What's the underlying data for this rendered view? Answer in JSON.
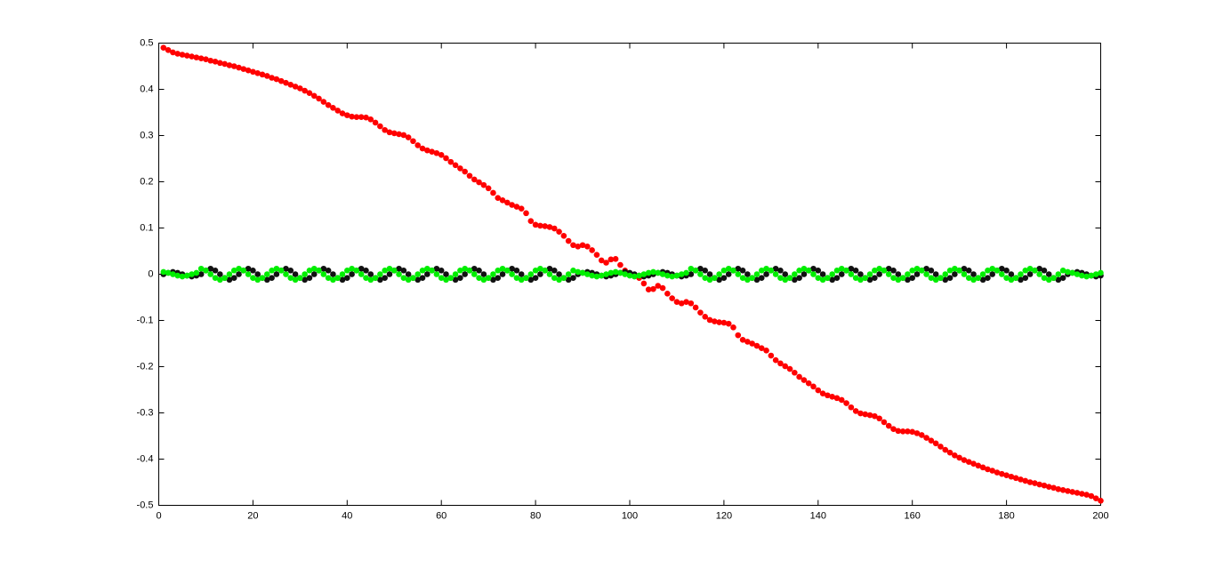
{
  "chart_data": {
    "type": "scatter",
    "x": [
      1,
      2,
      3,
      4,
      5,
      6,
      7,
      8,
      9,
      10,
      11,
      12,
      13,
      14,
      15,
      16,
      17,
      18,
      19,
      20,
      21,
      22,
      23,
      24,
      25,
      26,
      27,
      28,
      29,
      30,
      31,
      32,
      33,
      34,
      35,
      36,
      37,
      38,
      39,
      40,
      41,
      42,
      43,
      44,
      45,
      46,
      47,
      48,
      49,
      50,
      51,
      52,
      53,
      54,
      55,
      56,
      57,
      58,
      59,
      60,
      61,
      62,
      63,
      64,
      65,
      66,
      67,
      68,
      69,
      70,
      71,
      72,
      73,
      74,
      75,
      76,
      77,
      78,
      79,
      80,
      81,
      82,
      83,
      84,
      85,
      86,
      87,
      88,
      89,
      90,
      91,
      92,
      93,
      94,
      95,
      96,
      97,
      98,
      99,
      100,
      101,
      102,
      103,
      104,
      105,
      106,
      107,
      108,
      109,
      110,
      111,
      112,
      113,
      114,
      115,
      116,
      117,
      118,
      119,
      120,
      121,
      122,
      123,
      124,
      125,
      126,
      127,
      128,
      129,
      130,
      131,
      132,
      133,
      134,
      135,
      136,
      137,
      138,
      139,
      140,
      141,
      142,
      143,
      144,
      145,
      146,
      147,
      148,
      149,
      150,
      151,
      152,
      153,
      154,
      155,
      156,
      157,
      158,
      159,
      160,
      161,
      162,
      163,
      164,
      165,
      166,
      167,
      168,
      169,
      170,
      171,
      172,
      173,
      174,
      175,
      176,
      177,
      178,
      179,
      180,
      181,
      182,
      183,
      184,
      185,
      186,
      187,
      188,
      189,
      190,
      191,
      192,
      193,
      194,
      195,
      196,
      197,
      198,
      199,
      200
    ],
    "series": [
      {
        "color": "#ff0000",
        "values": [
          0.49,
          0.485,
          0.48,
          0.477,
          0.475,
          0.473,
          0.471,
          0.469,
          0.467,
          0.465,
          0.462,
          0.46,
          0.457,
          0.455,
          0.452,
          0.45,
          0.447,
          0.444,
          0.441,
          0.438,
          0.435,
          0.432,
          0.429,
          0.425,
          0.422,
          0.418,
          0.414,
          0.41,
          0.406,
          0.402,
          0.397,
          0.392,
          0.386,
          0.38,
          0.373,
          0.366,
          0.36,
          0.354,
          0.348,
          0.344,
          0.341,
          0.34,
          0.34,
          0.339,
          0.335,
          0.328,
          0.32,
          0.312,
          0.307,
          0.305,
          0.303,
          0.301,
          0.296,
          0.288,
          0.279,
          0.272,
          0.268,
          0.265,
          0.262,
          0.258,
          0.251,
          0.243,
          0.236,
          0.229,
          0.222,
          0.213,
          0.205,
          0.199,
          0.193,
          0.186,
          0.176,
          0.165,
          0.16,
          0.155,
          0.15,
          0.146,
          0.142,
          0.132,
          0.115,
          0.107,
          0.105,
          0.104,
          0.102,
          0.099,
          0.092,
          0.083,
          0.072,
          0.063,
          0.06,
          0.063,
          0.06,
          0.052,
          0.042,
          0.03,
          0.025,
          0.032,
          0.033,
          0.02,
          0.008,
          0.002,
          -0.002,
          -0.008,
          -0.02,
          -0.033,
          -0.032,
          -0.025,
          -0.03,
          -0.042,
          -0.052,
          -0.06,
          -0.063,
          -0.06,
          -0.063,
          -0.072,
          -0.083,
          -0.092,
          -0.099,
          -0.102,
          -0.104,
          -0.105,
          -0.107,
          -0.115,
          -0.132,
          -0.142,
          -0.146,
          -0.15,
          -0.155,
          -0.16,
          -0.165,
          -0.176,
          -0.186,
          -0.193,
          -0.199,
          -0.205,
          -0.213,
          -0.222,
          -0.229,
          -0.236,
          -0.243,
          -0.251,
          -0.258,
          -0.262,
          -0.265,
          -0.268,
          -0.272,
          -0.279,
          -0.288,
          -0.296,
          -0.301,
          -0.303,
          -0.305,
          -0.307,
          -0.312,
          -0.32,
          -0.328,
          -0.335,
          -0.339,
          -0.34,
          -0.34,
          -0.341,
          -0.344,
          -0.348,
          -0.354,
          -0.36,
          -0.366,
          -0.373,
          -0.38,
          -0.386,
          -0.392,
          -0.397,
          -0.402,
          -0.406,
          -0.41,
          -0.414,
          -0.418,
          -0.422,
          -0.425,
          -0.429,
          -0.432,
          -0.435,
          -0.438,
          -0.441,
          -0.444,
          -0.447,
          -0.45,
          -0.452,
          -0.455,
          -0.457,
          -0.46,
          -0.462,
          -0.465,
          -0.467,
          -0.469,
          -0.471,
          -0.473,
          -0.475,
          -0.477,
          -0.48,
          -0.485,
          -0.49
        ]
      },
      {
        "color": "#111111",
        "values": [
          0,
          0.003,
          0.005,
          0.003,
          0,
          -0.003,
          -0.005,
          -0.003,
          0,
          0.008,
          0.012,
          0.008,
          0,
          -0.008,
          -0.012,
          -0.008,
          0,
          0.008,
          0.012,
          0.008,
          0,
          -0.008,
          -0.012,
          -0.008,
          0,
          0.008,
          0.012,
          0.008,
          0,
          -0.008,
          -0.012,
          -0.008,
          0,
          0.008,
          0.012,
          0.008,
          0,
          -0.008,
          -0.012,
          -0.008,
          0,
          0.008,
          0.012,
          0.008,
          0,
          -0.008,
          -0.012,
          -0.008,
          0,
          0.008,
          0.012,
          0.008,
          0,
          -0.008,
          -0.012,
          -0.008,
          0,
          0.008,
          0.012,
          0.008,
          0,
          -0.008,
          -0.012,
          -0.008,
          0,
          0.008,
          0.012,
          0.008,
          0,
          -0.008,
          -0.012,
          -0.008,
          0,
          0.008,
          0.012,
          0.008,
          0,
          -0.008,
          -0.012,
          -0.008,
          0,
          0.008,
          0.012,
          0.008,
          0,
          -0.008,
          -0.012,
          -0.008,
          0,
          0.003,
          0.005,
          0.003,
          0,
          -0.003,
          -0.005,
          -0.003,
          0,
          0.003,
          0.005,
          0.003,
          0,
          -0.003,
          -0.005,
          -0.003,
          0,
          0.003,
          0.005,
          0.003,
          0,
          -0.003,
          -0.005,
          -0.003,
          0,
          0.008,
          0.012,
          0.008,
          0,
          -0.008,
          -0.012,
          -0.008,
          0,
          0.008,
          0.012,
          0.008,
          0,
          -0.008,
          -0.012,
          -0.008,
          0,
          0.008,
          0.012,
          0.008,
          0,
          -0.008,
          -0.012,
          -0.008,
          0,
          0.008,
          0.012,
          0.008,
          0,
          -0.008,
          -0.012,
          -0.008,
          0,
          0.008,
          0.012,
          0.008,
          0,
          -0.008,
          -0.012,
          -0.008,
          0,
          0.008,
          0.012,
          0.008,
          0,
          -0.008,
          -0.012,
          -0.008,
          0,
          0.008,
          0.012,
          0.008,
          0,
          -0.008,
          -0.012,
          -0.008,
          0,
          0.008,
          0.012,
          0.008,
          0,
          -0.008,
          -0.012,
          -0.008,
          0,
          0.008,
          0.012,
          0.008,
          0,
          -0.008,
          -0.012,
          -0.008,
          0,
          0.008,
          0.012,
          0.008,
          0,
          -0.008,
          -0.012,
          -0.008,
          0,
          0.003,
          0.005,
          0.003,
          0,
          -0.003,
          -0.005,
          -0.003
        ]
      },
      {
        "color": "#00ee00",
        "values": [
          0.005,
          0.003,
          0,
          -0.003,
          -0.005,
          -0.003,
          0,
          0.003,
          0.012,
          0.008,
          0,
          -0.008,
          -0.012,
          -0.008,
          0,
          0.008,
          0.012,
          0.008,
          0,
          -0.008,
          -0.012,
          -0.008,
          0,
          0.008,
          0.012,
          0.008,
          0,
          -0.008,
          -0.012,
          -0.008,
          0,
          0.008,
          0.012,
          0.008,
          0,
          -0.008,
          -0.012,
          -0.008,
          0,
          0.008,
          0.012,
          0.008,
          0,
          -0.008,
          -0.012,
          -0.008,
          0,
          0.008,
          0.012,
          0.008,
          0,
          -0.008,
          -0.012,
          -0.008,
          0,
          0.008,
          0.012,
          0.008,
          0,
          -0.008,
          -0.012,
          -0.008,
          0,
          0.008,
          0.012,
          0.008,
          0,
          -0.008,
          -0.012,
          -0.008,
          0,
          0.008,
          0.012,
          0.008,
          0,
          -0.008,
          -0.012,
          -0.008,
          0,
          0.008,
          0.012,
          0.008,
          0,
          -0.008,
          -0.012,
          -0.008,
          0,
          0.008,
          0.005,
          0.003,
          0,
          -0.003,
          -0.005,
          -0.003,
          0,
          0.003,
          0.005,
          0.003,
          0,
          -0.003,
          -0.005,
          -0.003,
          0,
          0.003,
          0.005,
          0.003,
          0,
          -0.003,
          -0.005,
          -0.003,
          0,
          0.003,
          0.012,
          0.008,
          0,
          -0.008,
          -0.012,
          -0.008,
          0,
          0.008,
          0.012,
          0.008,
          0,
          -0.008,
          -0.012,
          -0.008,
          0,
          0.008,
          0.012,
          0.008,
          0,
          -0.008,
          -0.012,
          -0.008,
          0,
          0.008,
          0.012,
          0.008,
          0,
          -0.008,
          -0.012,
          -0.008,
          0,
          0.008,
          0.012,
          0.008,
          0,
          -0.008,
          -0.012,
          -0.008,
          0,
          0.008,
          0.012,
          0.008,
          0,
          -0.008,
          -0.012,
          -0.008,
          0,
          0.008,
          0.012,
          0.008,
          0,
          -0.008,
          -0.012,
          -0.008,
          0,
          0.008,
          0.012,
          0.008,
          0,
          -0.008,
          -0.012,
          -0.008,
          0,
          0.008,
          0.012,
          0.008,
          0,
          -0.008,
          -0.012,
          -0.008,
          0,
          0.008,
          0.012,
          0.008,
          0,
          -0.008,
          -0.012,
          -0.008,
          0,
          0.008,
          0.005,
          0.003,
          0,
          -0.003,
          -0.005,
          -0.003,
          0,
          0.003
        ]
      }
    ],
    "xlim": [
      0,
      200
    ],
    "xticks": [
      0,
      20,
      40,
      60,
      80,
      100,
      120,
      140,
      160,
      180,
      200
    ],
    "ylim": [
      -0.5,
      0.5
    ],
    "yticks": [
      -0.5,
      -0.4,
      -0.3,
      -0.2,
      -0.1,
      0,
      0.1,
      0.2,
      0.3,
      0.4,
      0.5
    ],
    "grid": false
  }
}
